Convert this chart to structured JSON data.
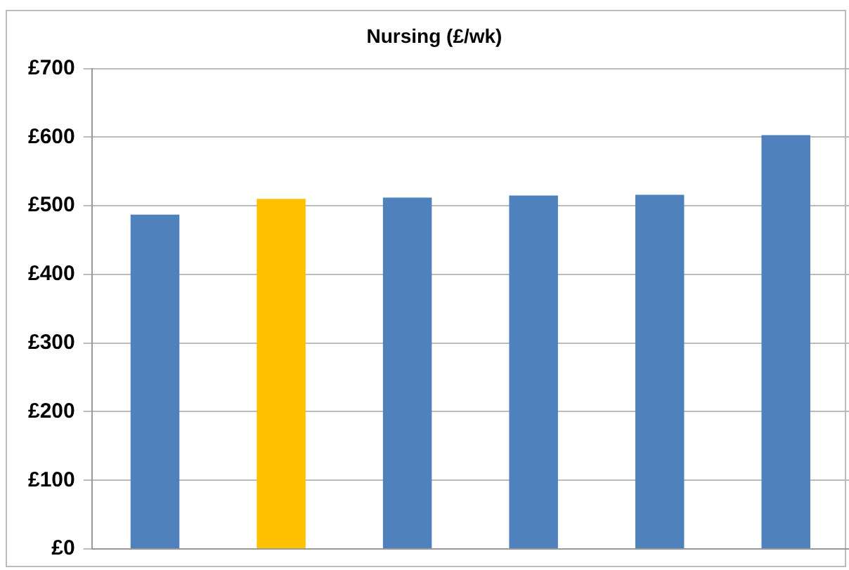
{
  "chart_data": {
    "type": "bar",
    "title": "Nursing (£/wk)",
    "categories": [
      null,
      null,
      null,
      null,
      null,
      null
    ],
    "values": [
      487,
      510,
      512,
      515,
      516,
      603
    ],
    "colors": [
      "#4f81bd",
      "#ffc000",
      "#4f81bd",
      "#4f81bd",
      "#4f81bd",
      "#4f81bd"
    ],
    "ylim": [
      0,
      700
    ],
    "yticks": [
      {
        "value": 0,
        "label": "£0"
      },
      {
        "value": 100,
        "label": "£100"
      },
      {
        "value": 200,
        "label": "£200"
      },
      {
        "value": 300,
        "label": "£300"
      },
      {
        "value": 400,
        "label": "£400"
      },
      {
        "value": 500,
        "label": "£500"
      },
      {
        "value": 600,
        "label": "£600"
      },
      {
        "value": 700,
        "label": "£700"
      }
    ],
    "grid": "y",
    "legend": false
  }
}
